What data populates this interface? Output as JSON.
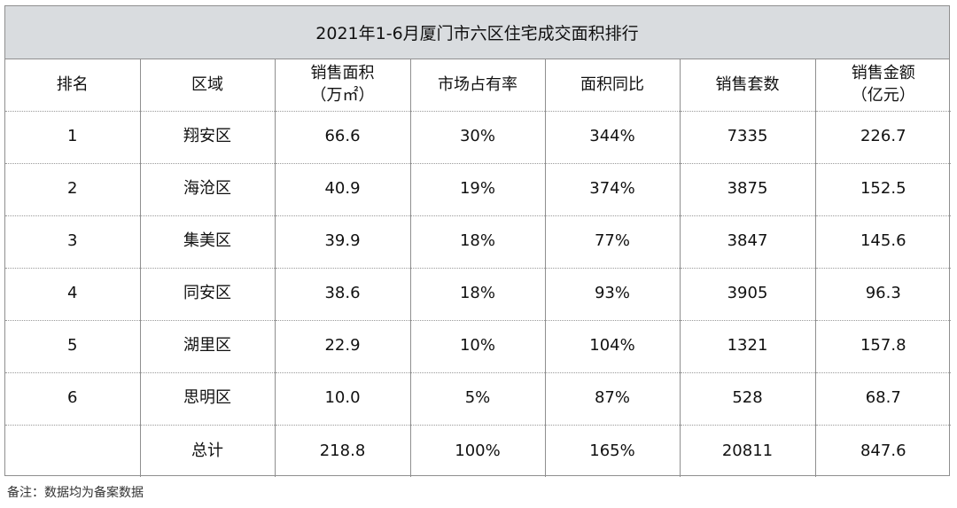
{
  "table": {
    "title": "2021年1-6月厦门市六区住宅成交面积排行",
    "headers": [
      [
        "排名"
      ],
      [
        "区域"
      ],
      [
        "销售面积",
        "（万㎡）"
      ],
      [
        "市场占有率"
      ],
      [
        "面积同比"
      ],
      [
        "销售套数"
      ],
      [
        "销售金额",
        "（亿元）"
      ]
    ],
    "rows": [
      [
        "1",
        "翔安区",
        "66.6",
        "30%",
        "344%",
        "7335",
        "226.7"
      ],
      [
        "2",
        "海沧区",
        "40.9",
        "19%",
        "374%",
        "3875",
        "152.5"
      ],
      [
        "3",
        "集美区",
        "39.9",
        "18%",
        "77%",
        "3847",
        "145.6"
      ],
      [
        "4",
        "同安区",
        "38.6",
        "18%",
        "93%",
        "3905",
        "96.3"
      ],
      [
        "5",
        "湖里区",
        "22.9",
        "10%",
        "104%",
        "1321",
        "157.8"
      ],
      [
        "6",
        "思明区",
        "10.0",
        "5%",
        "87%",
        "528",
        "68.7"
      ],
      [
        "",
        "总计",
        "218.8",
        "100%",
        "165%",
        "20811",
        "847.6"
      ]
    ]
  },
  "note": "备注：数据均为备案数据"
}
